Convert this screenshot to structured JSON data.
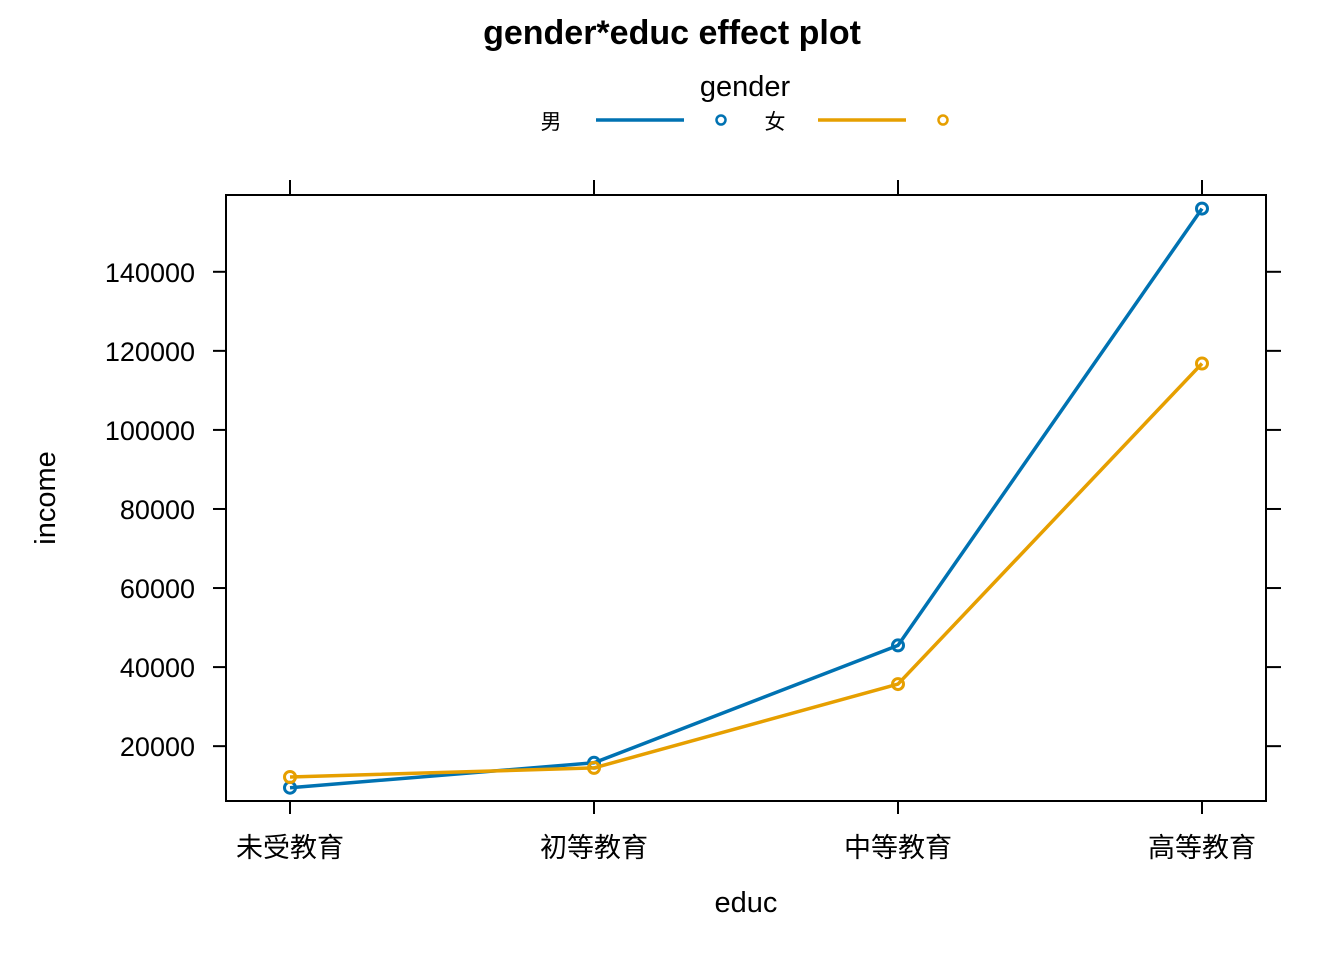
{
  "chart_data": {
    "type": "line",
    "title": "gender*educ effect plot",
    "xlabel": "educ",
    "ylabel": "income",
    "categories": [
      "未受教育",
      "初等教育",
      "中等教育",
      "高等教育"
    ],
    "ylim": [
      6000,
      160000
    ],
    "yticks": [
      20000,
      40000,
      60000,
      80000,
      100000,
      120000,
      140000
    ],
    "legend": {
      "title": "gender",
      "position": "top"
    },
    "grid": false,
    "series": [
      {
        "name": "男",
        "color": "#0072B2",
        "values": [
          9500,
          15800,
          45500,
          156000
        ]
      },
      {
        "name": "女",
        "color": "#E69F00",
        "values": [
          12200,
          14500,
          35700,
          116800
        ]
      }
    ]
  }
}
